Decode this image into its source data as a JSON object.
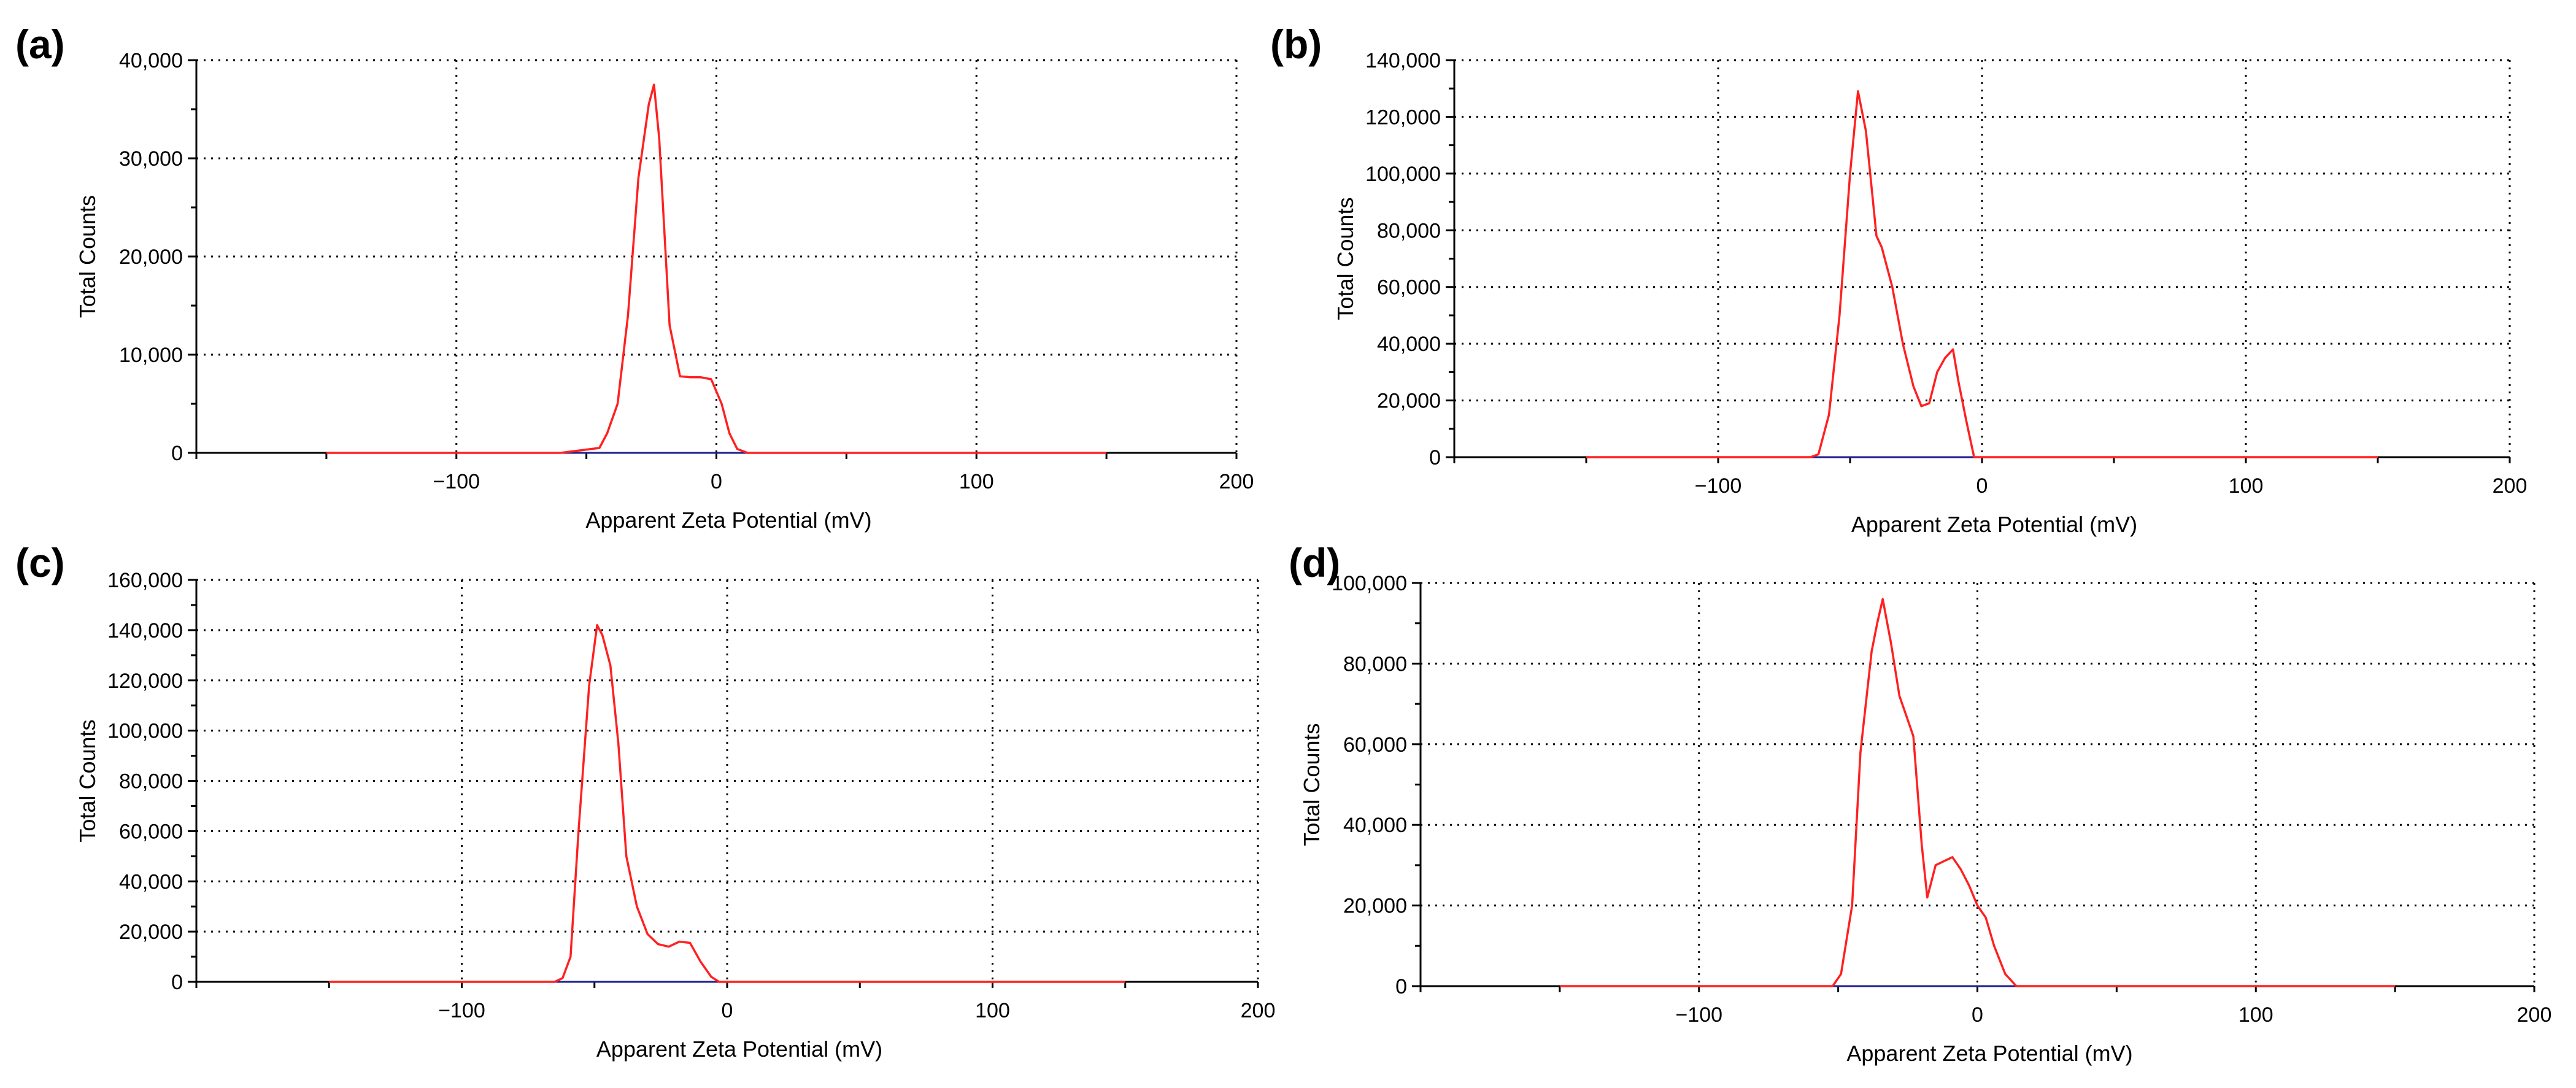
{
  "chart_data": [
    {
      "panel": "(a)",
      "type": "line",
      "xlabel": "Apparent Zeta Potential (mV)",
      "ylabel": "Total Counts",
      "xlim": [
        -200,
        200
      ],
      "ylim": [
        0,
        40000
      ],
      "xticks": [
        -100,
        0,
        100,
        200
      ],
      "xtick_labels": [
        "−100",
        "0",
        "100",
        "200"
      ],
      "yticks": [
        0,
        10000,
        20000,
        30000,
        40000
      ],
      "ytick_labels": [
        "0",
        "10,000",
        "20,000",
        "30,000",
        "40,000"
      ],
      "grid": true,
      "series": [
        {
          "color": "#ff2020",
          "x": [
            -150,
            -60,
            -45,
            -42,
            -38,
            -34,
            -30,
            -26,
            -24,
            -22,
            -18,
            -14,
            -10,
            -6,
            -4,
            -2,
            2,
            5,
            8,
            12,
            150
          ],
          "y": [
            0,
            0,
            500,
            2000,
            5000,
            14000,
            28000,
            35500,
            37500,
            32000,
            13000,
            7800,
            7700,
            7700,
            7600,
            7500,
            5000,
            2000,
            400,
            0,
            0
          ]
        }
      ]
    },
    {
      "panel": "(b)",
      "type": "line",
      "xlabel": "Apparent Zeta Potential (mV)",
      "ylabel": "Total Counts",
      "xlim": [
        -200,
        200
      ],
      "ylim": [
        0,
        140000
      ],
      "xticks": [
        -100,
        0,
        100,
        200
      ],
      "xtick_labels": [
        "−100",
        "0",
        "100",
        "200"
      ],
      "yticks": [
        0,
        20000,
        40000,
        60000,
        80000,
        100000,
        120000,
        140000
      ],
      "ytick_labels": [
        "0",
        "20,000",
        "40,000",
        "60,000",
        "80,000",
        "100,000",
        "120,000",
        "140,000"
      ],
      "grid": true,
      "series": [
        {
          "color": "#ff2020",
          "x": [
            -150,
            -65,
            -62,
            -58,
            -54,
            -50,
            -47,
            -44,
            -40,
            -38,
            -34,
            -30,
            -26,
            -23,
            -20,
            -17,
            -14,
            -11,
            -9,
            -6,
            -3,
            150
          ],
          "y": [
            0,
            0,
            1000,
            15000,
            50000,
            100000,
            129000,
            115000,
            78000,
            74000,
            60000,
            40000,
            25000,
            18000,
            19000,
            30000,
            35000,
            38000,
            27000,
            13000,
            0,
            0
          ]
        }
      ]
    },
    {
      "panel": "(c)",
      "type": "line",
      "xlabel": "Apparent Zeta Potential (mV)",
      "ylabel": "Total Counts",
      "xlim": [
        -200,
        200
      ],
      "ylim": [
        0,
        160000
      ],
      "xticks": [
        -100,
        0,
        100,
        200
      ],
      "xtick_labels": [
        "−100",
        "0",
        "100",
        "200"
      ],
      "yticks": [
        0,
        20000,
        40000,
        60000,
        80000,
        100000,
        120000,
        140000,
        160000
      ],
      "ytick_labels": [
        "0",
        "20,000",
        "40,000",
        "60,000",
        "80,000",
        "100,000",
        "120,000",
        "140,000",
        "160,000"
      ],
      "grid": true,
      "series": [
        {
          "color": "#ff2020",
          "x": [
            -150,
            -65,
            -62,
            -59,
            -56,
            -52,
            -49,
            -47,
            -44,
            -41,
            -38,
            -34,
            -30,
            -26,
            -22,
            -18,
            -14,
            -10,
            -6,
            -3,
            150
          ],
          "y": [
            0,
            0,
            1500,
            10000,
            60000,
            118000,
            142000,
            138000,
            126000,
            95000,
            50000,
            30000,
            19000,
            15000,
            14000,
            16000,
            15500,
            8000,
            2000,
            0,
            0
          ]
        }
      ]
    },
    {
      "panel": "(d)",
      "type": "line",
      "xlabel": "Apparent Zeta Potential (mV)",
      "ylabel": "Total Counts",
      "xlim": [
        -200,
        200
      ],
      "ylim": [
        0,
        100000
      ],
      "xticks": [
        -100,
        0,
        100,
        200
      ],
      "xtick_labels": [
        "−100",
        "0",
        "100",
        "200"
      ],
      "yticks": [
        0,
        20000,
        40000,
        60000,
        80000,
        100000
      ],
      "ytick_labels": [
        "0",
        "20,000",
        "40,000",
        "60,000",
        "80,000",
        "100,000"
      ],
      "grid": true,
      "series": [
        {
          "color": "#ff2020",
          "x": [
            -150,
            -52,
            -49,
            -45,
            -42,
            -38,
            -36,
            -34,
            -31,
            -28,
            -26,
            -23,
            -20,
            -18,
            -15,
            -12,
            -9,
            -6,
            -3,
            0,
            3,
            6,
            10,
            14,
            150
          ],
          "y": [
            0,
            0,
            3000,
            20000,
            58000,
            83000,
            90000,
            96000,
            85000,
            72000,
            68000,
            62000,
            35000,
            22000,
            30000,
            31000,
            32000,
            29000,
            25000,
            20000,
            17000,
            10000,
            3000,
            0,
            0
          ]
        }
      ]
    }
  ]
}
